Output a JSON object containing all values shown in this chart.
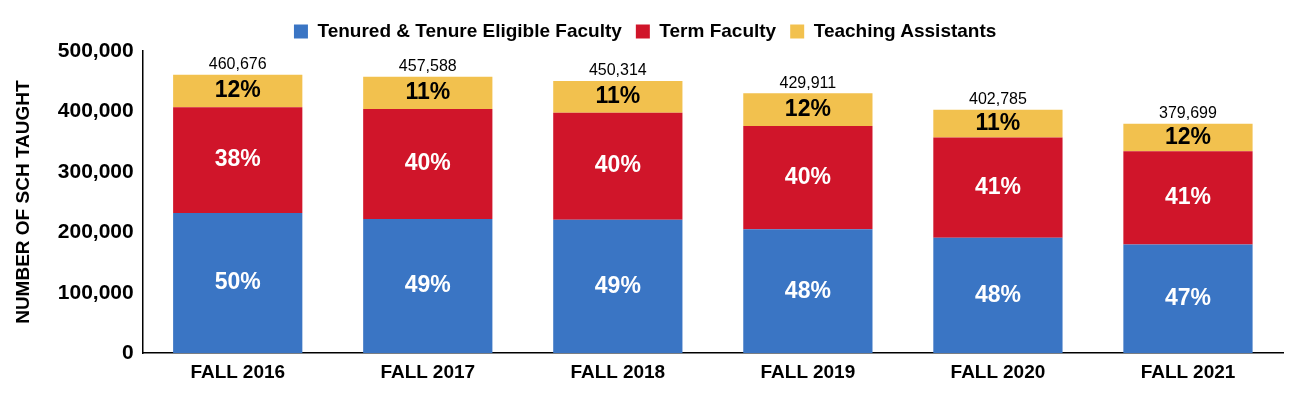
{
  "chart_data": {
    "type": "bar",
    "stacked": true,
    "ylabel": "NUMBER OF SCH TAUGHT",
    "categories": [
      "FALL 2016",
      "FALL 2017",
      "FALL 2018",
      "FALL 2019",
      "FALL 2020",
      "FALL 2021"
    ],
    "series": [
      {
        "name": "Tenured & Tenure Eligible Faculty",
        "color": "#3a75c4",
        "values": [
          232000,
          222000,
          221000,
          205000,
          191000,
          180000
        ]
      },
      {
        "name": "Term Faculty",
        "color": "#d0152a",
        "values": [
          175000,
          182000,
          177000,
          171000,
          166000,
          154000
        ]
      },
      {
        "name": "Teaching Assistants",
        "color": "#f2c14e",
        "values": [
          53676,
          53588,
          52314,
          53911,
          45785,
          45699
        ]
      }
    ],
    "totals": [
      "460,676",
      "457,588",
      "450,314",
      "429,911",
      "402,785",
      "379,699"
    ],
    "annotations": [
      "50%",
      "49%",
      "49%",
      "48%",
      "48%",
      "47%",
      "38%",
      "40%",
      "40%",
      "40%",
      "41%",
      "41%",
      "12%",
      "11%",
      "11%",
      "12%",
      "11%",
      "12%"
    ],
    "ylim": [
      0,
      500000
    ],
    "yticks": [
      {
        "value": 0,
        "label": "0"
      },
      {
        "value": 100000,
        "label": "100,000"
      },
      {
        "value": 200000,
        "label": "200,000"
      },
      {
        "value": 300000,
        "label": "300,000"
      },
      {
        "value": 400000,
        "label": "400,000"
      },
      {
        "value": 500000,
        "label": "500,000"
      }
    ],
    "grid": false,
    "legend": "top"
  }
}
